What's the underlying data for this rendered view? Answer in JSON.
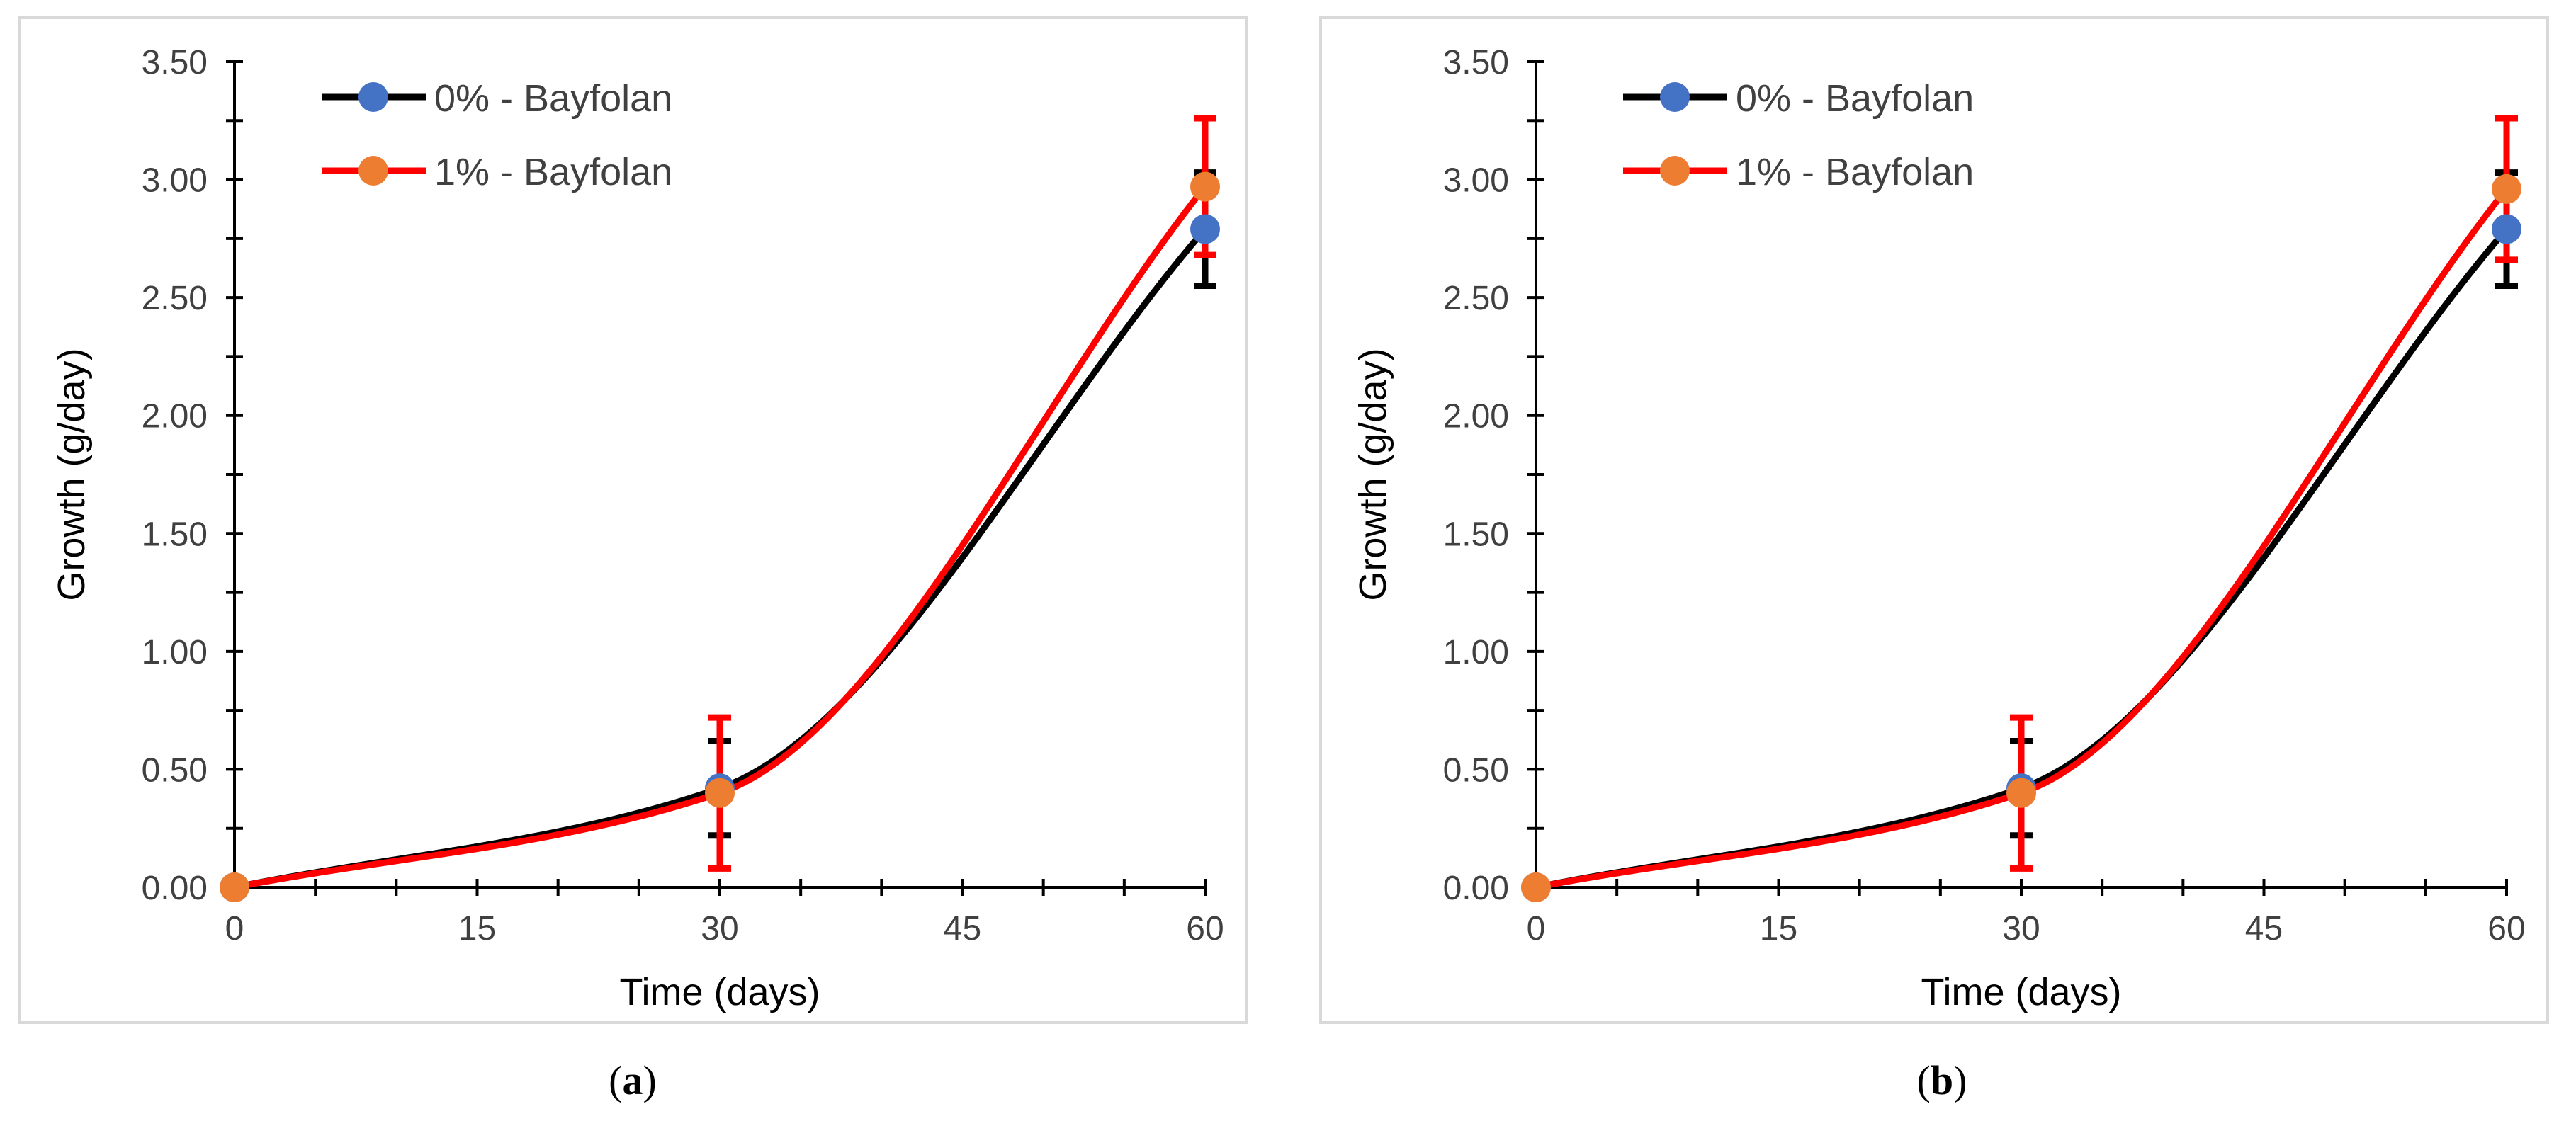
{
  "chart_data": [
    {
      "type": "line",
      "panel": "a",
      "caption": "a",
      "xlabel": "Time (days)",
      "ylabel": "Growth (g/day)",
      "xlim": [
        0,
        60
      ],
      "ylim": [
        0,
        3.5
      ],
      "xticks": [
        "0",
        "15",
        "30",
        "45",
        "60"
      ],
      "yticks": [
        "0.00",
        "0.50",
        "1.00",
        "1.50",
        "2.00",
        "2.50",
        "3.00",
        "3.50"
      ],
      "legend_position": "top-left",
      "series": [
        {
          "name": "0% - Bayfolan",
          "line_color": "#000000",
          "marker_color": "#4472c4",
          "x": [
            0,
            30,
            60
          ],
          "y": [
            0.0,
            0.42,
            2.79
          ],
          "err": [
            0.0,
            0.2,
            0.24
          ]
        },
        {
          "name": "1% - Bayfolan",
          "line_color": "#ff0000",
          "marker_color": "#ed7d31",
          "x": [
            0,
            30,
            60
          ],
          "y": [
            0.0,
            0.4,
            2.97
          ],
          "err": [
            0.0,
            0.32,
            0.29
          ]
        }
      ]
    },
    {
      "type": "line",
      "panel": "b",
      "caption": "b",
      "xlabel": "Time (days)",
      "ylabel": "Growth (g/day)",
      "xlim": [
        0,
        60
      ],
      "ylim": [
        0,
        3.5
      ],
      "xticks": [
        "0",
        "15",
        "30",
        "45",
        "60"
      ],
      "yticks": [
        "0.00",
        "0.50",
        "1.00",
        "1.50",
        "2.00",
        "2.50",
        "3.00",
        "3.50"
      ],
      "legend_position": "top-left",
      "series": [
        {
          "name": "0% - Bayfolan",
          "line_color": "#000000",
          "marker_color": "#4472c4",
          "x": [
            0,
            30,
            60
          ],
          "y": [
            0.0,
            0.42,
            2.79
          ],
          "err": [
            0.0,
            0.2,
            0.24
          ]
        },
        {
          "name": "1% - Bayfolan",
          "line_color": "#ff0000",
          "marker_color": "#ed7d31",
          "x": [
            0,
            30,
            60
          ],
          "y": [
            0.0,
            0.4,
            2.96
          ],
          "err": [
            0.0,
            0.32,
            0.3
          ]
        }
      ]
    }
  ]
}
